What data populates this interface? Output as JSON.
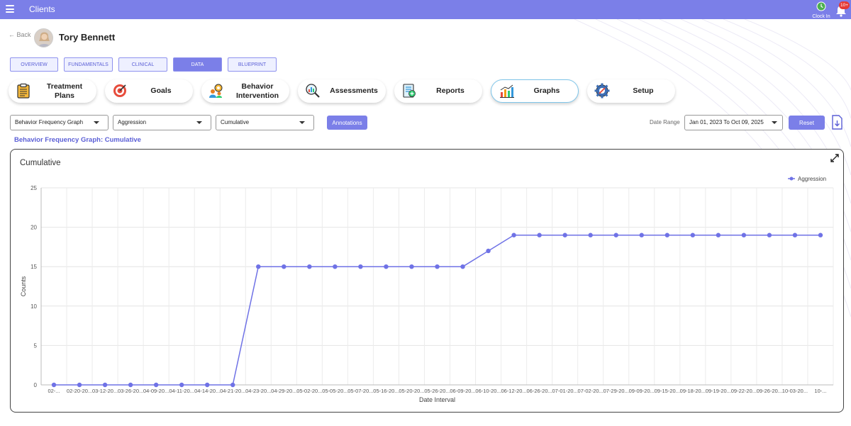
{
  "header": {
    "title": "Clients",
    "clock_in_label": "Clock In",
    "notification_count": "10+"
  },
  "client": {
    "back_label": "Back",
    "name": "Tory Bennett"
  },
  "tabs": [
    {
      "label": "OVERVIEW"
    },
    {
      "label": "FUNDAMENTALS"
    },
    {
      "label": "CLINICAL"
    },
    {
      "label": "DATA",
      "active": true
    },
    {
      "label": "BLUEPRINT"
    }
  ],
  "cards": [
    {
      "label": "Treatment Plans",
      "icon": "clipboard-icon"
    },
    {
      "label": "Goals",
      "icon": "target-icon"
    },
    {
      "label": "Behavior Intervention",
      "icon": "people-gear-icon"
    },
    {
      "label": "Assessments",
      "icon": "magnifier-chart-icon"
    },
    {
      "label": "Reports",
      "icon": "report-icon"
    },
    {
      "label": "Graphs",
      "icon": "bar-graph-icon",
      "active": true
    },
    {
      "label": "Setup",
      "icon": "setup-gear-icon"
    }
  ],
  "filters": {
    "graph_type": "Behavior Frequency Graph",
    "behavior": "Aggression",
    "mode": "Cumulative",
    "annotations_label": "Annotations",
    "date_range_label": "Date Range",
    "date_range_value": "Jan 01, 2023 To Oct 09, 2025",
    "reset_label": "Reset"
  },
  "graph_heading": "Behavior Frequency Graph: Cumulative",
  "colors": {
    "accent": "#7b7fe8",
    "series": "#6f72e6",
    "heading": "#5b5fd6"
  },
  "chart_data": {
    "type": "line",
    "title": "Cumulative",
    "xlabel": "Date Interval",
    "ylabel": "Counts",
    "ylim": [
      0,
      25
    ],
    "yticks": [
      "0",
      "5",
      "10",
      "15",
      "20",
      "25"
    ],
    "grid": true,
    "legend_position": "top-right",
    "categories": [
      "02-...",
      "02-20-20...",
      "03-12-20...",
      "03-26-20...",
      "04-09-20...",
      "04-11-20...",
      "04-14-20...",
      "04-21-20...",
      "04-23-20...",
      "04-29-20...",
      "05-02-20...",
      "05-05-20...",
      "05-07-20...",
      "05-16-20...",
      "05-20-20...",
      "05-26-20...",
      "06-09-20...",
      "06-10-20...",
      "06-12-20...",
      "06-26-20...",
      "07-01-20...",
      "07-02-20...",
      "07-29-20...",
      "09-09-20...",
      "09-15-20...",
      "09-18-20...",
      "09-19-20...",
      "09-22-20...",
      "09-26-20...",
      "10-03-20...",
      "10-..."
    ],
    "series": [
      {
        "name": "Aggression",
        "values": [
          0,
          0,
          0,
          0,
          0,
          0,
          0,
          0,
          15,
          15,
          15,
          15,
          15,
          15,
          15,
          15,
          15,
          17,
          19,
          19,
          19,
          19,
          19,
          19,
          19,
          19,
          19,
          19,
          19,
          19,
          19
        ]
      }
    ]
  }
}
